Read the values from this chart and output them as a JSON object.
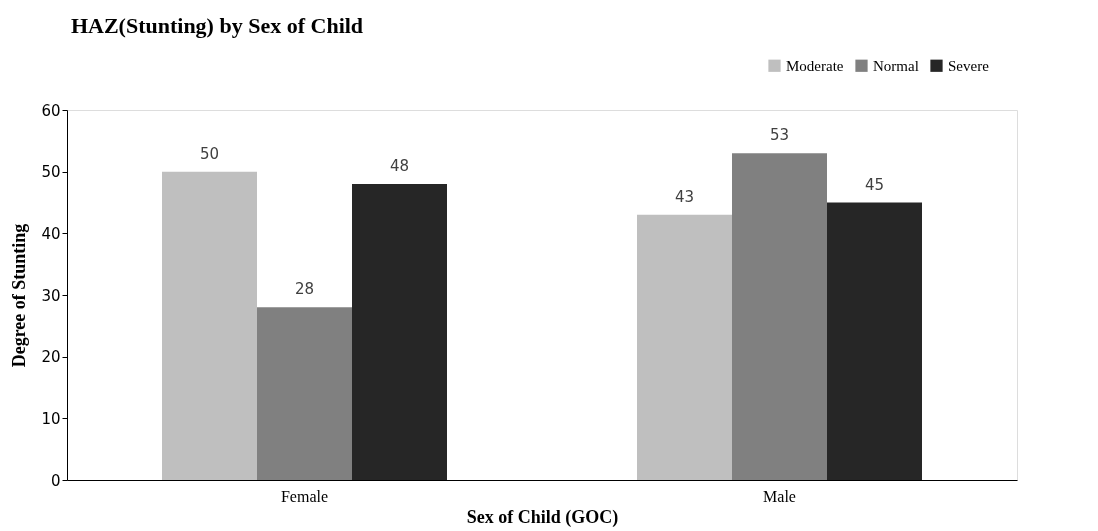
{
  "chart_data": {
    "type": "bar",
    "title": "HAZ(Stunting) by Sex of Child",
    "xlabel": "Sex of Child (GOC)",
    "ylabel": "Degree of Stunting",
    "categories": [
      "Female",
      "Male"
    ],
    "series": [
      {
        "name": "Moderate",
        "color": "#bfbfbf",
        "values": [
          50,
          43
        ]
      },
      {
        "name": "Normal",
        "color": "#808080",
        "values": [
          28,
          53
        ]
      },
      {
        "name": "Severe",
        "color": "#262626",
        "values": [
          48,
          45
        ]
      }
    ],
    "ylim": [
      0,
      60
    ],
    "yticks": [
      0,
      10,
      20,
      30,
      40,
      50,
      60
    ],
    "grid": false,
    "legend": "top right",
    "data_labels": true
  }
}
